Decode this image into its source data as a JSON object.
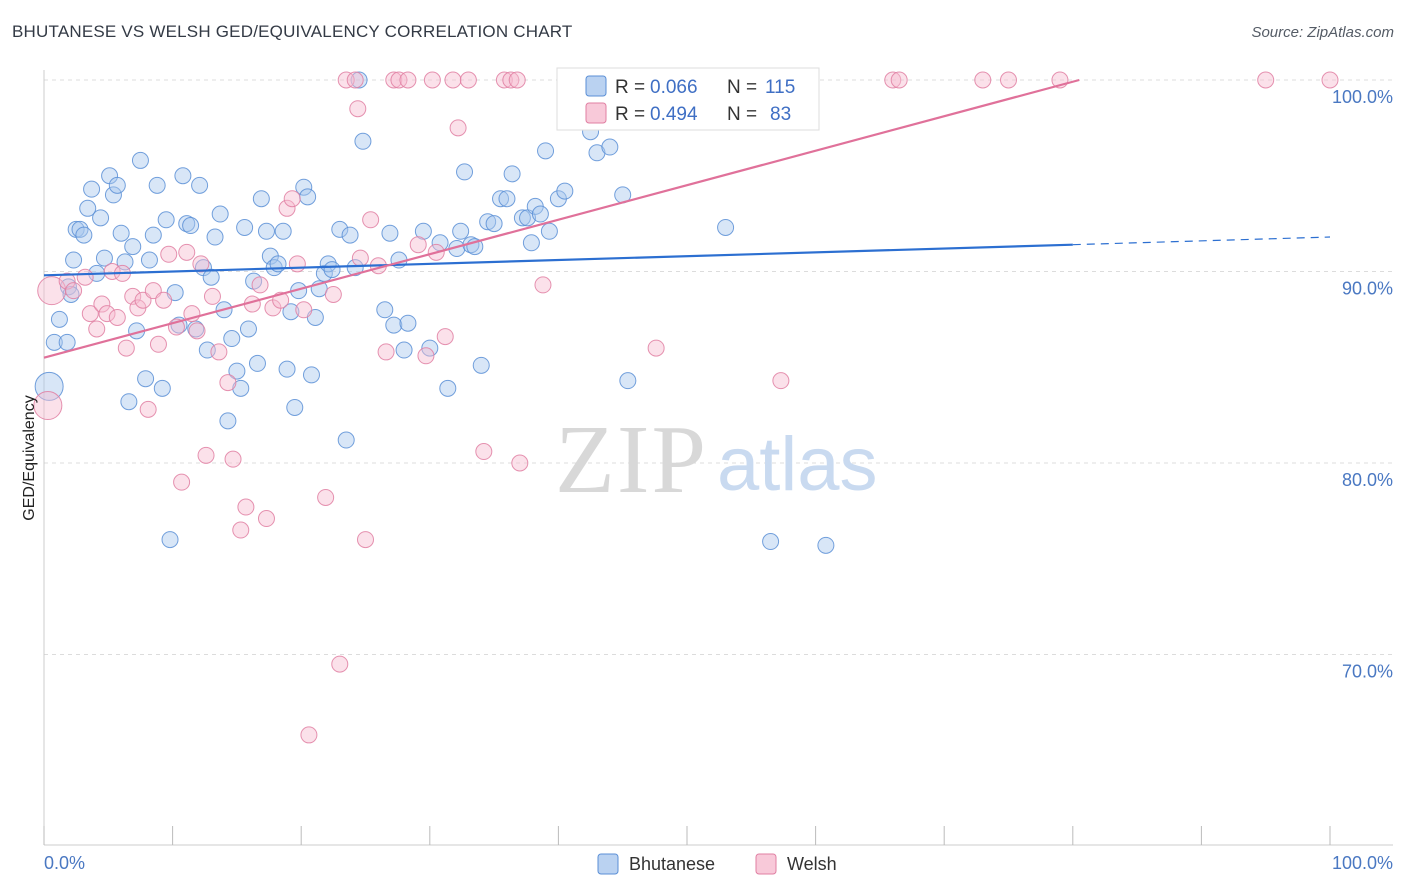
{
  "title": "BHUTANESE VS WELSH GED/EQUIVALENCY CORRELATION CHART",
  "source": "Source: ZipAtlas.com",
  "watermark": {
    "zip": "ZIP",
    "atlas": "atlas"
  },
  "legend": {
    "rows": [
      {
        "r_label": "R =",
        "r_value": "0.066",
        "n_label": "N =",
        "n_value": "115",
        "color": "#a9c7ee",
        "stroke": "#5b8fd6"
      },
      {
        "r_label": "R =",
        "r_value": "0.494",
        "n_label": "N =",
        "n_value": "83",
        "color": "#f6bcd0",
        "stroke": "#e07fa2"
      }
    ]
  },
  "bottom_legend": [
    {
      "label": "Bhutanese",
      "color": "#a9c7ee",
      "stroke": "#5b8fd6"
    },
    {
      "label": "Welsh",
      "color": "#f6bcd0",
      "stroke": "#e07fa2"
    }
  ],
  "chart_data": {
    "type": "scatter",
    "title": "BHUTANESE VS WELSH GED/EQUIVALENCY CORRELATION CHART",
    "xlabel": "",
    "ylabel": "GED/Equivalency",
    "xlim": [
      0,
      100
    ],
    "ylim": [
      60.5,
      101.5
    ],
    "x_tick_labels": [
      "0.0%",
      "100.0%"
    ],
    "y_ticks": [
      70,
      80,
      90,
      100
    ],
    "y_tick_labels": [
      "70.0%",
      "80.0%",
      "90.0%",
      "100.0%"
    ],
    "grid": true,
    "legend_position": "top-center",
    "series": [
      {
        "name": "Bhutanese",
        "color": "#a9c7ee",
        "stroke": "#5b8fd6",
        "trend": {
          "x": [
            0,
            80
          ],
          "y": [
            89.8,
            91.4
          ],
          "dashed_to": [
            100,
            91.8
          ],
          "color": "#2c6fd1"
        },
        "points": [
          [
            0.4,
            84
          ],
          [
            0.8,
            86.3
          ],
          [
            1.2,
            87.5
          ],
          [
            1.8,
            86.3
          ],
          [
            1.9,
            89.2
          ],
          [
            2.1,
            88.8
          ],
          [
            2.3,
            90.6
          ],
          [
            2.5,
            92.2
          ],
          [
            2.8,
            92.2
          ],
          [
            3.1,
            91.9
          ],
          [
            3.4,
            93.3
          ],
          [
            3.7,
            94.3
          ],
          [
            4.1,
            89.9
          ],
          [
            4.4,
            92.8
          ],
          [
            4.7,
            90.7
          ],
          [
            5.1,
            95
          ],
          [
            5.4,
            94
          ],
          [
            5.7,
            94.5
          ],
          [
            6,
            92
          ],
          [
            6.3,
            90.5
          ],
          [
            6.6,
            83.2
          ],
          [
            6.9,
            91.3
          ],
          [
            7.2,
            86.9
          ],
          [
            7.5,
            95.8
          ],
          [
            7.9,
            84.4
          ],
          [
            8.2,
            90.6
          ],
          [
            8.5,
            91.9
          ],
          [
            8.8,
            94.5
          ],
          [
            9.2,
            83.9
          ],
          [
            9.5,
            92.7
          ],
          [
            9.8,
            76
          ],
          [
            10.2,
            88.9
          ],
          [
            10.5,
            87.2
          ],
          [
            10.8,
            95
          ],
          [
            11.1,
            92.5
          ],
          [
            11.4,
            92.4
          ],
          [
            11.8,
            87
          ],
          [
            12.1,
            94.5
          ],
          [
            12.4,
            90.2
          ],
          [
            12.7,
            85.9
          ],
          [
            13,
            89.7
          ],
          [
            13.3,
            91.8
          ],
          [
            13.7,
            93
          ],
          [
            14,
            88
          ],
          [
            14.3,
            82.2
          ],
          [
            14.6,
            86.5
          ],
          [
            15,
            84.8
          ],
          [
            15.3,
            83.9
          ],
          [
            15.6,
            92.3
          ],
          [
            15.9,
            87
          ],
          [
            16.3,
            89.5
          ],
          [
            16.6,
            85.2
          ],
          [
            16.9,
            93.8
          ],
          [
            17.3,
            92.1
          ],
          [
            17.6,
            90.8
          ],
          [
            17.9,
            90.2
          ],
          [
            18.2,
            90.4
          ],
          [
            18.6,
            92.1
          ],
          [
            18.9,
            84.9
          ],
          [
            19.2,
            87.9
          ],
          [
            19.5,
            82.9
          ],
          [
            19.8,
            89
          ],
          [
            20.2,
            94.4
          ],
          [
            20.5,
            93.9
          ],
          [
            20.8,
            84.6
          ],
          [
            21.1,
            87.6
          ],
          [
            21.4,
            89.1
          ],
          [
            21.8,
            89.9
          ],
          [
            22.1,
            90.4
          ],
          [
            22.4,
            90.1
          ],
          [
            23,
            92.2
          ],
          [
            23.5,
            81.2
          ],
          [
            23.8,
            91.9
          ],
          [
            24.2,
            90.2
          ],
          [
            24.5,
            100
          ],
          [
            24.8,
            96.8
          ],
          [
            26.5,
            88
          ],
          [
            26.9,
            92
          ],
          [
            27.2,
            87.2
          ],
          [
            27.6,
            90.6
          ],
          [
            28,
            85.9
          ],
          [
            28.3,
            87.3
          ],
          [
            29.5,
            92.1
          ],
          [
            30,
            86
          ],
          [
            30.8,
            91.5
          ],
          [
            31.4,
            83.9
          ],
          [
            32.1,
            91.2
          ],
          [
            32.4,
            92.1
          ],
          [
            32.7,
            95.2
          ],
          [
            33.2,
            91.4
          ],
          [
            33.5,
            91.3
          ],
          [
            34,
            85.1
          ],
          [
            34.5,
            92.6
          ],
          [
            35,
            92.5
          ],
          [
            35.5,
            93.8
          ],
          [
            36,
            93.8
          ],
          [
            36.4,
            95.1
          ],
          [
            37.2,
            92.8
          ],
          [
            37.6,
            92.8
          ],
          [
            37.9,
            91.5
          ],
          [
            38.2,
            93.4
          ],
          [
            38.6,
            93
          ],
          [
            39,
            96.3
          ],
          [
            39.3,
            92.1
          ],
          [
            40,
            93.8
          ],
          [
            40.5,
            94.2
          ],
          [
            42,
            98.6
          ],
          [
            42.5,
            97.3
          ],
          [
            43,
            96.2
          ],
          [
            44,
            96.5
          ],
          [
            45,
            94
          ],
          [
            45.4,
            84.3
          ],
          [
            53,
            92.3
          ],
          [
            56.5,
            75.9
          ],
          [
            60.8,
            75.7
          ]
        ]
      },
      {
        "name": "Welsh",
        "color": "#f6bcd0",
        "stroke": "#e07fa2",
        "trend": {
          "x": [
            0,
            80.5
          ],
          "y": [
            85.5,
            100
          ],
          "color": "#e0719a"
        },
        "points": [
          [
            0.3,
            83
          ],
          [
            0.6,
            89
          ],
          [
            1.8,
            89.5
          ],
          [
            2.3,
            89
          ],
          [
            3.2,
            89.7
          ],
          [
            3.6,
            87.8
          ],
          [
            4.1,
            87
          ],
          [
            4.5,
            88.3
          ],
          [
            4.9,
            87.8
          ],
          [
            5.3,
            90
          ],
          [
            5.7,
            87.6
          ],
          [
            6.1,
            89.9
          ],
          [
            6.4,
            86
          ],
          [
            6.9,
            88.7
          ],
          [
            7.3,
            88.1
          ],
          [
            7.7,
            88.5
          ],
          [
            8.1,
            82.8
          ],
          [
            8.5,
            89
          ],
          [
            8.9,
            86.2
          ],
          [
            9.3,
            88.5
          ],
          [
            9.7,
            90.9
          ],
          [
            10.3,
            87.1
          ],
          [
            10.7,
            79
          ],
          [
            11.1,
            91
          ],
          [
            11.5,
            87.8
          ],
          [
            11.9,
            86.9
          ],
          [
            12.2,
            90.4
          ],
          [
            12.6,
            80.4
          ],
          [
            13.1,
            88.7
          ],
          [
            13.6,
            85.8
          ],
          [
            14.3,
            84.2
          ],
          [
            14.7,
            80.2
          ],
          [
            15.3,
            76.5
          ],
          [
            15.7,
            77.7
          ],
          [
            16.2,
            88.3
          ],
          [
            16.8,
            89.3
          ],
          [
            17.3,
            77.1
          ],
          [
            17.8,
            88.1
          ],
          [
            18.4,
            88.5
          ],
          [
            18.9,
            93.3
          ],
          [
            19.3,
            93.8
          ],
          [
            19.7,
            90.4
          ],
          [
            20.2,
            88
          ],
          [
            20.6,
            65.8
          ],
          [
            21.9,
            78.2
          ],
          [
            22.5,
            88.8
          ],
          [
            23,
            69.5
          ],
          [
            23.5,
            100
          ],
          [
            24.2,
            100
          ],
          [
            24.4,
            98.5
          ],
          [
            24.6,
            90.7
          ],
          [
            25,
            76
          ],
          [
            25.4,
            92.7
          ],
          [
            26,
            90.3
          ],
          [
            26.6,
            85.8
          ],
          [
            27.2,
            100
          ],
          [
            27.6,
            100
          ],
          [
            28.3,
            100
          ],
          [
            29.1,
            91.4
          ],
          [
            29.7,
            85.6
          ],
          [
            30.2,
            100
          ],
          [
            30.5,
            91
          ],
          [
            31.2,
            86.6
          ],
          [
            31.8,
            100
          ],
          [
            32.2,
            97.5
          ],
          [
            33,
            100
          ],
          [
            34.2,
            80.6
          ],
          [
            35.8,
            100
          ],
          [
            36.3,
            100
          ],
          [
            36.8,
            100
          ],
          [
            37,
            80
          ],
          [
            38.8,
            89.3
          ],
          [
            58,
            100
          ],
          [
            66,
            100
          ],
          [
            66.5,
            100
          ],
          [
            73,
            100
          ],
          [
            75,
            100
          ],
          [
            79,
            100
          ],
          [
            95,
            100
          ],
          [
            100,
            100
          ],
          [
            47.6,
            86
          ],
          [
            57.3,
            84.3
          ],
          [
            46.5,
            100
          ]
        ]
      }
    ]
  }
}
